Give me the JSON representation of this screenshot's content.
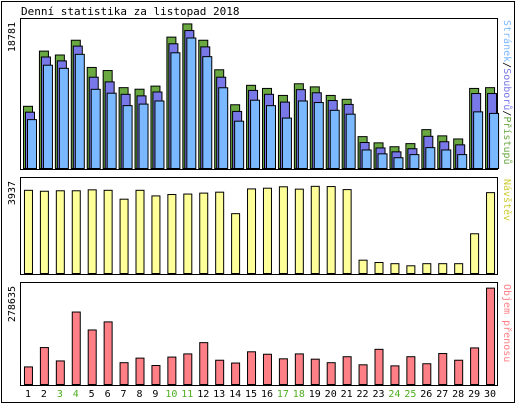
{
  "chart_data": {
    "type": "bar",
    "title": "Denní statistika za listopad 2018",
    "categories": [
      "1",
      "2",
      "3",
      "4",
      "5",
      "6",
      "7",
      "8",
      "9",
      "10",
      "11",
      "12",
      "13",
      "14",
      "15",
      "16",
      "17",
      "18",
      "19",
      "20",
      "21",
      "22",
      "23",
      "24",
      "25",
      "26",
      "27",
      "28",
      "29",
      "30"
    ],
    "weekend_days": [
      "3",
      "4",
      "10",
      "11",
      "17",
      "18",
      "24",
      "25"
    ],
    "colors": {
      "background": "#ffffff",
      "frame": "#000000",
      "weekday_label": "#000000",
      "weekend_label": "#4caf1e",
      "pristupu": "#6aa842",
      "soubory": "#7878e8",
      "stranky": "#7ab8ff",
      "navstevy": "#ffff99",
      "objem": "#ff7f86"
    },
    "panels": [
      {
        "name": "traffic",
        "ymax_label": "18781",
        "ylim": [
          0,
          18781
        ],
        "series_label": {
          "parts": [
            {
              "text": "Stránek",
              "color": "#7ab8ff"
            },
            {
              "text": "/",
              "color": "#000000"
            },
            {
              "text": "Souborů",
              "color": "#7878e8"
            },
            {
              "text": "/",
              "color": "#000000"
            },
            {
              "text": "Přístupů",
              "color": "#6aa842"
            }
          ]
        },
        "series": [
          {
            "name": "Přístupů",
            "color": "#6aa842",
            "values": [
              8000,
              15100,
              14600,
              16500,
              13000,
              12600,
              10400,
              10200,
              10600,
              16900,
              18600,
              16500,
              12700,
              8200,
              10700,
              10300,
              9400,
              10900,
              10500,
              9400,
              8900,
              4100,
              3300,
              2800,
              3200,
              5000,
              4200,
              3800,
              10300,
              10400
            ]
          },
          {
            "name": "Souborů",
            "color": "#7878e8",
            "values": [
              7500,
              14600,
              14100,
              16000,
              12000,
              11400,
              9800,
              9600,
              10100,
              16300,
              18000,
              15900,
              12000,
              7600,
              10300,
              9800,
              8800,
              10400,
              10000,
              9000,
              8500,
              3600,
              2900,
              2400,
              2800,
              4400,
              3700,
              3300,
              9900,
              9900
            ]
          },
          {
            "name": "Stránek",
            "color": "#7ab8ff",
            "values": [
              6800,
              13800,
              13400,
              15200,
              10700,
              10200,
              8600,
              8800,
              9200,
              15400,
              17300,
              14900,
              10900,
              6600,
              9300,
              8600,
              7000,
              9200,
              9000,
              8000,
              7500,
              2900,
              2400,
              1900,
              2300,
              3200,
              2900,
              2300,
              7800,
              7600
            ]
          }
        ]
      },
      {
        "name": "visits",
        "ymax_label": "3937",
        "ylim": [
          0,
          3937
        ],
        "series_label": {
          "parts": [
            {
              "text": "Návštěv",
              "color": "#cccc33"
            }
          ]
        },
        "series": [
          {
            "name": "Návštěv",
            "color": "#ffff99",
            "values": [
              3560,
              3520,
              3540,
              3540,
              3580,
              3560,
              3180,
              3560,
              3320,
              3380,
              3400,
              3440,
              3480,
              2560,
              3620,
              3650,
              3710,
              3610,
              3730,
              3720,
              3590,
              570,
              470,
              420,
              330,
              420,
              420,
              420,
              1700,
              3460
            ]
          }
        ]
      },
      {
        "name": "volume",
        "ymax_label": "278635",
        "ylim": [
          0,
          278635
        ],
        "series_label": {
          "parts": [
            {
              "text": "Objem přenosu",
              "color": "#ff7f86"
            }
          ]
        },
        "series": [
          {
            "name": "Objem přenosu",
            "color": "#ff7f86",
            "values": [
              50000,
              105000,
              67000,
              206000,
              155000,
              178000,
              62000,
              75000,
              54000,
              78000,
              87000,
              119000,
              69000,
              61000,
              93000,
              86000,
              73000,
              87000,
              72000,
              62000,
              79000,
              56000,
              100000,
              53000,
              79000,
              59000,
              88000,
              69000,
              104000,
              274000
            ]
          }
        ]
      }
    ]
  }
}
